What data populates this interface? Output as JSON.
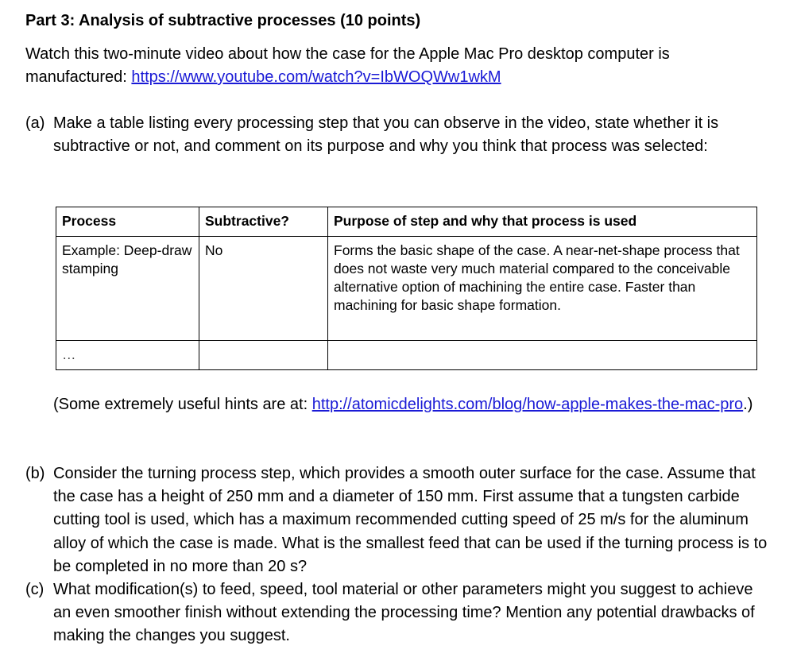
{
  "title": "Part 3: Analysis of subtractive processes (10 points)",
  "intro": {
    "text": "Watch this two-minute video about how the case for the Apple Mac Pro desktop computer is manufactured: ",
    "link": "https://www.youtube.com/watch?v=IbWOQWw1wkM"
  },
  "part_a": {
    "label": "(a)",
    "text": "Make a table listing every processing step that you can observe in the video, state whether it is subtractive or not, and comment on its purpose and why you think that process was selected:",
    "table": {
      "headers": [
        "Process",
        "Subtractive?",
        "Purpose of step and why that process is used"
      ],
      "rows": [
        [
          "Example: Deep-draw stamping",
          "No",
          "Forms the basic shape of the case. A near-net-shape process that does not waste very much material compared to the conceivable alternative option of machining the entire case. Faster than machining for basic shape formation."
        ],
        [
          "…",
          "",
          ""
        ]
      ]
    },
    "hint_prefix": "(Some extremely useful hints are at: ",
    "hint_link": "http://atomicdelights.com/blog/how-apple-makes-the-mac-pro",
    "hint_suffix": ".)"
  },
  "part_b": {
    "label": "(b)",
    "text": "Consider the turning process step, which provides a smooth outer surface for the case. Assume that the case has a height of 250 mm and a diameter of 150 mm. First assume that a tungsten carbide cutting tool is used, which has a maximum recommended cutting speed of 25 m/s for the aluminum alloy of which the case is made. What is the smallest feed that can be used if the turning process is to be completed in no more than 20 s?"
  },
  "part_c": {
    "label": "(c)",
    "text": "What modification(s) to feed, speed, tool material or other parameters might you suggest to achieve an even smoother finish without extending the processing time? Mention any potential drawbacks of making the changes you suggest."
  },
  "colors": {
    "link": "#1a1ad6"
  }
}
